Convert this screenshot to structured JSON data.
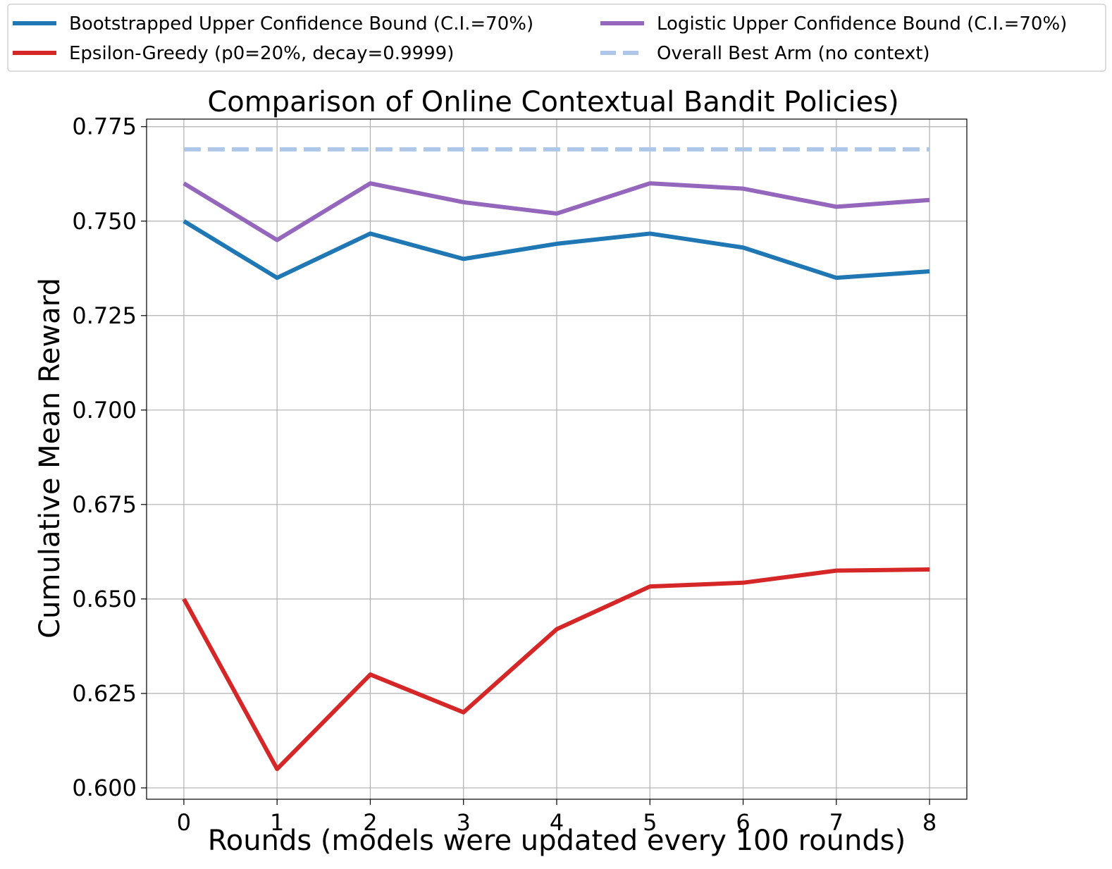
{
  "chart_data": {
    "type": "line",
    "title": "Comparison of Online Contextual Bandit Policies)",
    "xlabel": "Rounds (models were updated every 100 rounds)",
    "ylabel": "Cumulative Mean Reward",
    "x": [
      0,
      1,
      2,
      3,
      4,
      5,
      6,
      7,
      8
    ],
    "xlim": [
      -0.4,
      8.4
    ],
    "ylim": [
      0.597,
      0.777
    ],
    "xticks": [
      "0",
      "1",
      "2",
      "3",
      "4",
      "5",
      "6",
      "7",
      "8"
    ],
    "yticks": [
      "0.600",
      "0.625",
      "0.650",
      "0.675",
      "0.700",
      "0.725",
      "0.750",
      "0.775"
    ],
    "grid": true,
    "legend_placement": "above plot, two columns",
    "series": [
      {
        "name": "Bootstrapped Upper Confidence Bound (C.I.=70%)",
        "color": "#1f77b4",
        "style": "solid",
        "values": [
          0.75,
          0.735,
          0.7467,
          0.74,
          0.744,
          0.7467,
          0.743,
          0.735,
          0.7367
        ]
      },
      {
        "name": "Epsilon-Greedy (p0=20%, decay=0.9999)",
        "color": "#d62728",
        "style": "solid",
        "values": [
          0.65,
          0.605,
          0.63,
          0.62,
          0.642,
          0.6533,
          0.6543,
          0.6575,
          0.6578
        ]
      },
      {
        "name": "Logistic Upper Confidence Bound (C.I.=70%)",
        "color": "#9467bd",
        "style": "solid",
        "values": [
          0.76,
          0.745,
          0.76,
          0.755,
          0.752,
          0.76,
          0.7586,
          0.7538,
          0.7556
        ]
      },
      {
        "name": "Overall Best Arm (no context)",
        "color": "#aec7e8",
        "style": "dashed",
        "values": [
          0.769,
          0.769,
          0.769,
          0.769,
          0.769,
          0.769,
          0.769,
          0.769,
          0.769
        ]
      }
    ]
  }
}
